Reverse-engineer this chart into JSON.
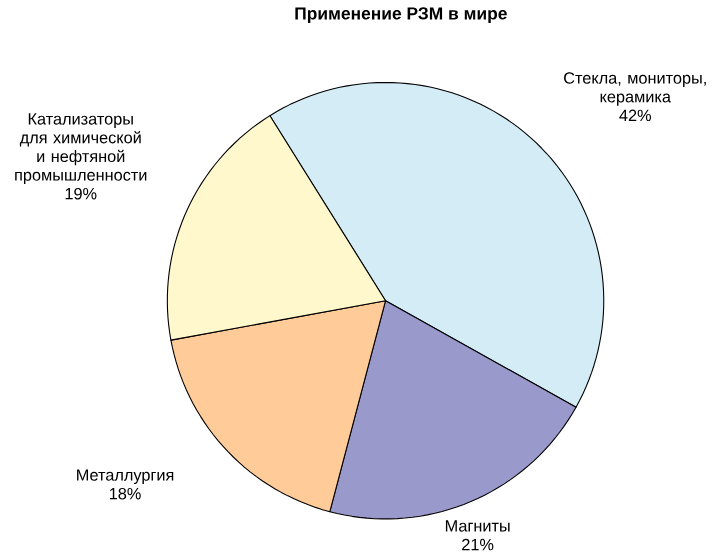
{
  "chart_data": {
    "type": "pie",
    "title": "Применение РЗМ в мире",
    "categories": [
      "Стекла, мониторы, керамика",
      "Магниты",
      "Металлургия",
      "Катализаторы для химической и нефтяной промышленности"
    ],
    "values": [
      42,
      21,
      18,
      19
    ],
    "value_labels": [
      "42%",
      "21%",
      "18%",
      "19%"
    ],
    "colors": [
      "#d4ecf6",
      "#9999cc",
      "#ffcc99",
      "#fff8cc"
    ]
  }
}
